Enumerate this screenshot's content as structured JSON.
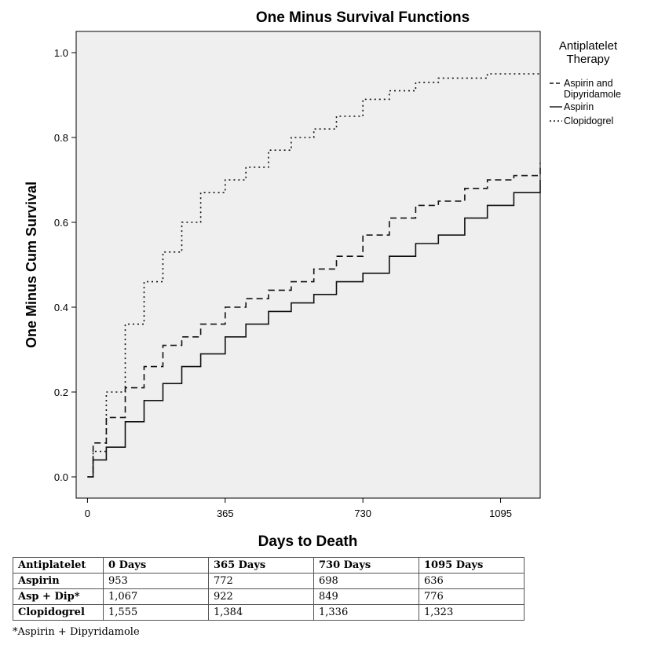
{
  "chart_data": {
    "type": "line",
    "title": "One Minus Survival Functions",
    "xlabel": "Days to Death",
    "ylabel": "One Minus Cum Survival",
    "xlim": [
      -30,
      1200
    ],
    "ylim": [
      -0.05,
      1.05
    ],
    "xticks": [
      0,
      365,
      730,
      1095
    ],
    "yticks": [
      0.0,
      0.2,
      0.4,
      0.6,
      0.8,
      1.0
    ],
    "ytick_labels": [
      "0.0",
      "0.2",
      "0.4",
      "0.6",
      "0.8",
      "1.0"
    ],
    "grid": false,
    "legend_title": "Antiplatelet\nTherapy",
    "legend_position": "right",
    "series": [
      {
        "name": "Aspirin and\nDipyridamole",
        "style": "dashed",
        "x": [
          0,
          15,
          50,
          100,
          150,
          200,
          250,
          300,
          365,
          420,
          480,
          540,
          600,
          660,
          730,
          800,
          870,
          930,
          1000,
          1060,
          1130,
          1200
        ],
        "y": [
          0.0,
          0.08,
          0.14,
          0.21,
          0.26,
          0.31,
          0.33,
          0.36,
          0.4,
          0.42,
          0.44,
          0.46,
          0.49,
          0.52,
          0.57,
          0.61,
          0.64,
          0.65,
          0.68,
          0.7,
          0.71,
          0.74
        ]
      },
      {
        "name": "Aspirin",
        "style": "solid",
        "x": [
          0,
          15,
          50,
          100,
          150,
          200,
          250,
          300,
          365,
          420,
          480,
          540,
          600,
          660,
          730,
          800,
          870,
          930,
          1000,
          1060,
          1130,
          1200
        ],
        "y": [
          0.0,
          0.04,
          0.07,
          0.13,
          0.18,
          0.22,
          0.26,
          0.29,
          0.33,
          0.36,
          0.39,
          0.41,
          0.43,
          0.46,
          0.48,
          0.52,
          0.55,
          0.57,
          0.61,
          0.64,
          0.67,
          0.7
        ]
      },
      {
        "name": "Clopidogrel",
        "style": "dotted",
        "x": [
          0,
          15,
          50,
          100,
          150,
          200,
          250,
          300,
          365,
          420,
          480,
          540,
          600,
          660,
          730,
          800,
          870,
          930,
          1000,
          1060,
          1130,
          1200
        ],
        "y": [
          0.0,
          0.06,
          0.2,
          0.36,
          0.46,
          0.53,
          0.6,
          0.67,
          0.7,
          0.73,
          0.77,
          0.8,
          0.82,
          0.85,
          0.89,
          0.91,
          0.93,
          0.94,
          0.94,
          0.95,
          0.95,
          0.95
        ]
      }
    ]
  },
  "table": {
    "headers": [
      "Antiplatelet",
      "0 Days",
      "365 Days",
      "730 Days",
      "1095 Days"
    ],
    "rows": [
      [
        "Aspirin",
        "953",
        "772",
        "698",
        "636"
      ],
      [
        "Asp + Dip*",
        "1,067",
        "922",
        "849",
        "776"
      ],
      [
        "Clopidogrel",
        "1,555",
        "1,384",
        "1,336",
        "1,323"
      ]
    ]
  },
  "footnote": "*Aspirin + Dipyridamole"
}
